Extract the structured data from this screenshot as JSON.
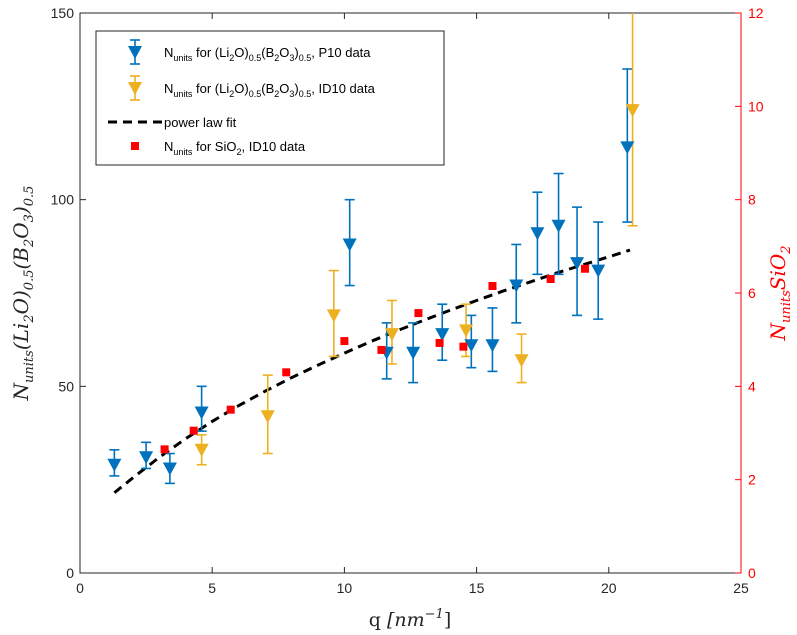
{
  "chart_data": {
    "type": "scatter",
    "title": "",
    "xlabel": "q [nm⁻¹]",
    "xlabel_main": "q ",
    "xlabel_unit": "[nm",
    "xlabel_exp": "−1",
    "xlabel_close": "]",
    "ylabel_left": "N_units(Li2O)0.5(B2O3)0.5",
    "ylabel_right": "N_units SiO2",
    "xlim": [
      0,
      25
    ],
    "ylim_left": [
      0,
      150
    ],
    "ylim_right": [
      0,
      12
    ],
    "xticks": [
      "0",
      "5",
      "10",
      "15",
      "20",
      "25"
    ],
    "yticks_left": [
      "0",
      "50",
      "100",
      "150"
    ],
    "yticks_right": [
      "0",
      "2",
      "4",
      "6",
      "8",
      "10",
      "12"
    ],
    "colors": {
      "p10": "#0072BD",
      "id10": "#EDB120",
      "sio2": "#FF0000",
      "fit": "#000000",
      "right_axis": "#FF0000"
    },
    "legend_position": "top-left",
    "series": [
      {
        "name": "N_units for (Li2O)0.5(B2O3)0.5, P10 data",
        "legend": {
          "base": "N",
          "sub1": "units",
          "mid1": "  for (Li",
          "sub2": "2",
          "mid2": "O)",
          "sub3": "0.5",
          "mid3": "(B",
          "sub4": "2",
          "mid4": "O",
          "sub5": "3",
          "mid5": ")",
          "sub6": "0.5",
          "tail": ", P10 data"
        },
        "axis": "left",
        "marker": "triangle-down",
        "color": "#0072BD",
        "points": [
          {
            "x": 1.3,
            "y": 29,
            "lo": 26,
            "hi": 33
          },
          {
            "x": 2.5,
            "y": 31,
            "lo": 28,
            "hi": 35
          },
          {
            "x": 3.4,
            "y": 28,
            "lo": 24,
            "hi": 32
          },
          {
            "x": 4.6,
            "y": 43,
            "lo": 38,
            "hi": 50
          },
          {
            "x": 10.2,
            "y": 88,
            "lo": 77,
            "hi": 100
          },
          {
            "x": 11.6,
            "y": 59,
            "lo": 52,
            "hi": 67
          },
          {
            "x": 12.6,
            "y": 59,
            "lo": 51,
            "hi": 67
          },
          {
            "x": 13.7,
            "y": 64,
            "lo": 57,
            "hi": 72
          },
          {
            "x": 14.8,
            "y": 61,
            "lo": 55,
            "hi": 69
          },
          {
            "x": 15.6,
            "y": 61,
            "lo": 54,
            "hi": 71
          },
          {
            "x": 16.5,
            "y": 77,
            "lo": 67,
            "hi": 88
          },
          {
            "x": 17.3,
            "y": 91,
            "lo": 80,
            "hi": 102
          },
          {
            "x": 18.1,
            "y": 93,
            "lo": 80,
            "hi": 107
          },
          {
            "x": 18.8,
            "y": 83,
            "lo": 69,
            "hi": 98
          },
          {
            "x": 19.6,
            "y": 81,
            "lo": 68,
            "hi": 94
          },
          {
            "x": 20.7,
            "y": 114,
            "lo": 94,
            "hi": 135
          }
        ]
      },
      {
        "name": "N_units for (Li2O)0.5(B2O3)0.5, ID10 data",
        "legend": {
          "base": "N",
          "sub1": "units",
          "mid1": "  for (Li",
          "sub2": "2",
          "mid2": "O)",
          "sub3": "0.5",
          "mid3": "(B",
          "sub4": "2",
          "mid4": "O",
          "sub5": "3",
          "mid5": ")",
          "sub6": "0.5",
          "tail": ", ID10 data"
        },
        "axis": "left",
        "marker": "triangle-down",
        "color": "#EDB120",
        "points": [
          {
            "x": 4.6,
            "y": 33,
            "lo": 29,
            "hi": 37
          },
          {
            "x": 7.1,
            "y": 42,
            "lo": 32,
            "hi": 53
          },
          {
            "x": 9.6,
            "y": 69,
            "lo": 58,
            "hi": 81
          },
          {
            "x": 11.8,
            "y": 64,
            "lo": 56,
            "hi": 73
          },
          {
            "x": 14.6,
            "y": 65,
            "lo": 58,
            "hi": 72
          },
          {
            "x": 16.7,
            "y": 57,
            "lo": 51,
            "hi": 64
          },
          {
            "x": 20.9,
            "y": 124,
            "lo": 93,
            "hi": 160
          }
        ]
      },
      {
        "name": "N_units for SiO2, ID10 data",
        "legend": {
          "base": "N",
          "sub1": "units",
          "mid1": " for SiO",
          "sub2": "2",
          "tail": ", ID10 data"
        },
        "axis": "right",
        "marker": "square",
        "color": "#FF0000",
        "points": [
          {
            "x": 3.2,
            "y": 2.65
          },
          {
            "x": 4.3,
            "y": 3.05
          },
          {
            "x": 5.7,
            "y": 3.5
          },
          {
            "x": 7.8,
            "y": 4.3
          },
          {
            "x": 10.0,
            "y": 4.97
          },
          {
            "x": 11.4,
            "y": 4.78
          },
          {
            "x": 12.8,
            "y": 5.57
          },
          {
            "x": 13.6,
            "y": 4.93
          },
          {
            "x": 14.5,
            "y": 4.85
          },
          {
            "x": 15.6,
            "y": 6.15
          },
          {
            "x": 17.8,
            "y": 6.3
          },
          {
            "x": 19.1,
            "y": 6.52
          }
        ]
      },
      {
        "name": "power law fit",
        "legend": {
          "text": "power law fit"
        },
        "axis": "left",
        "type": "line",
        "style": "dashed",
        "color": "#000000",
        "x": [
          1.3,
          2.0,
          3.0,
          4.0,
          5.0,
          6.0,
          7.0,
          8.0,
          9.0,
          10.0,
          11.0,
          12.0,
          13.0,
          14.0,
          15.0,
          16.0,
          17.0,
          18.0,
          19.0,
          20.0,
          20.8
        ],
        "y": [
          21.5,
          25.5,
          31.0,
          36.0,
          40.6,
          44.8,
          48.7,
          52.3,
          55.7,
          58.9,
          62.0,
          64.9,
          67.7,
          70.4,
          73.0,
          75.5,
          77.9,
          80.3,
          82.5,
          84.7,
          86.5
        ]
      }
    ]
  }
}
